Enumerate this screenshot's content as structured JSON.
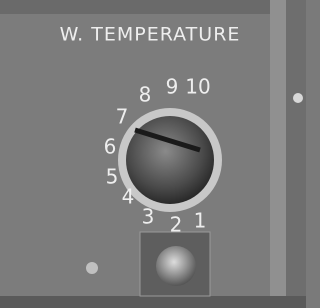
{
  "panel": {
    "label": "W. TEMPERATURE",
    "dial_numbers": [
      "1",
      "2",
      "3",
      "4",
      "5",
      "6",
      "7",
      "8",
      "9",
      "10"
    ]
  }
}
